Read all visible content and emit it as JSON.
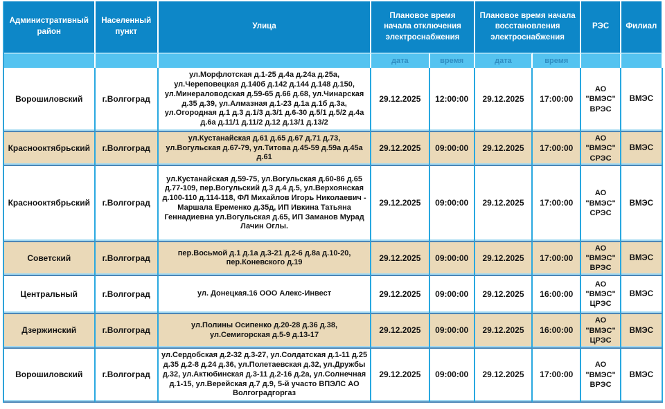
{
  "colors": {
    "header_bg": "#0d87c8",
    "subheader_bg": "#54c3f0",
    "subheader_text": "#2f8dc2",
    "row_alt_bg": "#ead9b8",
    "row_bg": "#ffffff",
    "grid_vertical": "#29a8e0",
    "grid_horizontal_dark": "#4d86b6",
    "grid_horizontal_light": "#a3daf2"
  },
  "header": {
    "col_district": "Административный район",
    "col_settlement": "Населенный пункт",
    "col_streets": "Улица",
    "col_outage_group": "Плановое время начала отключения электроснабжения",
    "col_restore_group": "Плановое время начала восстановления электроснабжения",
    "col_res": "РЭС",
    "col_branch": "Филиал",
    "sub_date_1": "дата",
    "sub_time_1": "время",
    "sub_date_2": "дата",
    "sub_time_2": "время"
  },
  "rows": [
    {
      "district": "Ворошиловский",
      "settlement": "г.Волгоград",
      "streets": "ул.Морфлотская д.1-25 д.4а д.24а д.25а, ул.Череповецкая д.140б д.142 д.144 д.148 д.150, ул.Минераловодская д.59-65 д.66 д.68, ул.Чинарская д.35 д.39, ул.Алмазная д.1-23 д.1а д.1б д.3а, ул.Огородная д.1 д.3 д.1/3 д.3/1 д.6-30 д.5/1 д.5/2 д.4а д.6а д.11/1 д.11/2 д.12 д.13/1 д.13/2",
      "outage_date": "29.12.2025",
      "outage_time": "12:00:00",
      "restore_date": "29.12.2025",
      "restore_time": "17:00:00",
      "res": "АО \"ВМЭС\" ВРЭС",
      "branch": "ВМЭС"
    },
    {
      "district": "Краснооктябрьский",
      "settlement": "г.Волгоград",
      "streets": "ул.Кустанайская д.61 д.65 д.67 д.71 д.73, ул.Вогульская д.67-79, ул.Титова д.45-59 д.59а д.45а д.61",
      "outage_date": "29.12.2025",
      "outage_time": "09:00:00",
      "restore_date": "29.12.2025",
      "restore_time": "17:00:00",
      "res": "АО \"ВМЭС\" СРЭС",
      "branch": "ВМЭС"
    },
    {
      "district": "Краснооктябрьский",
      "settlement": "г.Волгоград",
      "streets": "ул.Кустанайская д.59-75, ул.Вогульская д.60-86 д.65 д.77-109, пер.Вогульский д.3 д.4 д.5, ул.Верхоянская д.100-110 д.114-118, ФЛ Михайлов Игорь Николаевич - Маршала Еременко д.35д, ИП Ивкина Татьяна Геннадиевна ул.Вогульская д.65, ИП Заманов Мурад Лачин Оглы.",
      "outage_date": "29.12.2025",
      "outage_time": "09:00:00",
      "restore_date": "29.12.2025",
      "restore_time": "17:00:00",
      "res": "АО \"ВМЭС\" СРЭС",
      "branch": "ВМЭС"
    },
    {
      "district": "Советский",
      "settlement": "г.Волгоград",
      "streets": "пер.Восьмой д.1 д.1а д.3-21 д.2-6 д.8а д.10-20, пер.Коневского д.19",
      "outage_date": "29.12.2025",
      "outage_time": "09:00:00",
      "restore_date": "29.12.2025",
      "restore_time": "17:00:00",
      "res": "АО \"ВМЭС\" ВРЭС",
      "branch": "ВМЭС"
    },
    {
      "district": "Центральный",
      "settlement": "г.Волгоград",
      "streets": "ул. Донецкая.16 ООО Алекс-Инвест",
      "outage_date": "29.12.2025",
      "outage_time": "09:00:00",
      "restore_date": "29.12.2025",
      "restore_time": "16:00:00",
      "res": "АО \"ВМЭС\" ЦРЭС",
      "branch": "ВМЭС"
    },
    {
      "district": "Дзержинский",
      "settlement": "г.Волгоград",
      "streets": "ул.Полины Осипенко д.20-28 д.36 д.38, ул.Семигорская д.5-9 д.13-17",
      "outage_date": "29.12.2025",
      "outage_time": "09:00:00",
      "restore_date": "29.12.2025",
      "restore_time": "16:00:00",
      "res": "АО \"ВМЭС\" ЦРЭС",
      "branch": "ВМЭС"
    },
    {
      "district": "Ворошиловский",
      "settlement": "г.Волгоград",
      "streets": "ул.Сердобская д.2-32 д.3-27, ул.Солдатская д.1-11 д.25 д.35 д.2-8 д.24 д.36, ул.Полетаевская д.32, ул.Дружбы д.32, ул.Актюбинская д.3-11 д.2-16 д.2а, ул.Солнечная д.1-15, ул.Верейская д.7 д.9, 5-й участо ВПЭЛС АО Волгоградгоргаз",
      "outage_date": "29.12.2025",
      "outage_time": "09:00:00",
      "restore_date": "29.12.2025",
      "restore_time": "17:00:00",
      "res": "АО \"ВМЭС\" ВРЭС",
      "branch": "ВМЭС"
    }
  ]
}
